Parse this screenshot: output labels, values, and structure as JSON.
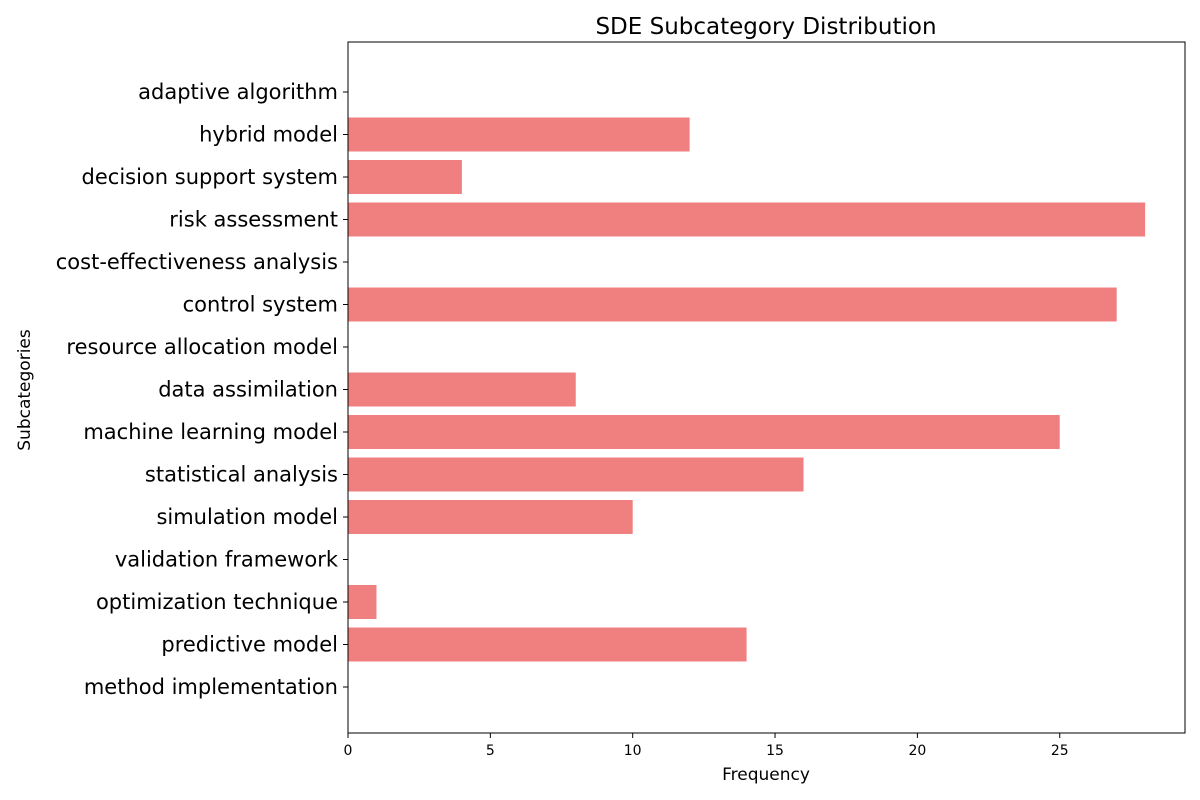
{
  "chart_data": {
    "type": "bar",
    "orientation": "horizontal",
    "title": "SDE Subcategory Distribution",
    "xlabel": "Frequency",
    "ylabel": "Subcategories",
    "categories": [
      "method implementation",
      "predictive model",
      "optimization technique",
      "validation framework",
      "simulation model",
      "statistical analysis",
      "machine learning model",
      "data assimilation",
      "resource allocation model",
      "control system",
      "cost-effectiveness analysis",
      "risk assessment",
      "decision support system",
      "hybrid model",
      "adaptive algorithm"
    ],
    "values": [
      0,
      14,
      1,
      0,
      10,
      16,
      25,
      8,
      0,
      27,
      0,
      28,
      4,
      12,
      0
    ],
    "xlim": [
      0,
      29.4
    ],
    "xticks": [
      "0",
      "5",
      "10",
      "15",
      "20",
      "25"
    ],
    "bar_color": "#f08080",
    "grid": false,
    "legend": "none"
  }
}
